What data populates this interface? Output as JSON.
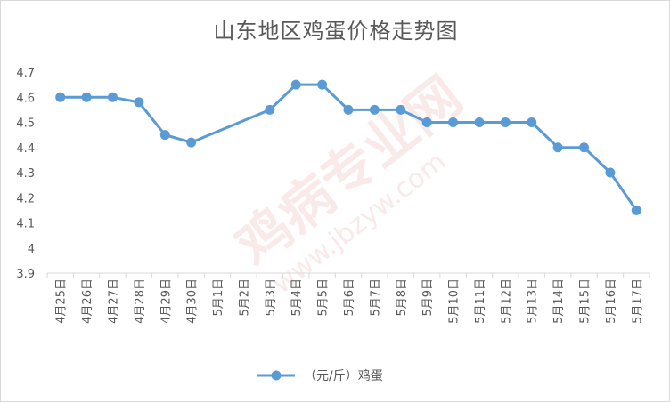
{
  "chart_data": {
    "type": "line",
    "title": "山东地区鸡蛋价格走势图",
    "xlabel": "",
    "ylabel": "",
    "ylim": [
      3.9,
      4.7
    ],
    "yticks": [
      "3.9",
      "4",
      "4.1",
      "4.2",
      "4.3",
      "4.4",
      "4.5",
      "4.6",
      "4.7"
    ],
    "grid": false,
    "legend_position": "bottom",
    "color": "#5b9bd5",
    "categories": [
      "4月25日",
      "4月26日",
      "4月27日",
      "4月28日",
      "4月29日",
      "4月30日",
      "5月1日",
      "5月2日",
      "5月3日",
      "5月4日",
      "5月5日",
      "5月6日",
      "5月7日",
      "5月8日",
      "5月9日",
      "5月10日",
      "5月11日",
      "5月12日",
      "5月13日",
      "5月14日",
      "5月15日",
      "5月16日",
      "5月17日"
    ],
    "series": [
      {
        "name": "（元/斤）鸡蛋",
        "values": [
          4.6,
          4.6,
          4.6,
          4.58,
          4.45,
          4.42,
          null,
          null,
          4.55,
          4.65,
          4.65,
          4.55,
          4.55,
          4.55,
          4.5,
          4.5,
          4.5,
          4.5,
          4.5,
          4.4,
          4.4,
          4.3,
          4.15
        ]
      }
    ]
  },
  "watermark": {
    "text": "鸡病专业网",
    "url": "www.jbzyw.com"
  }
}
